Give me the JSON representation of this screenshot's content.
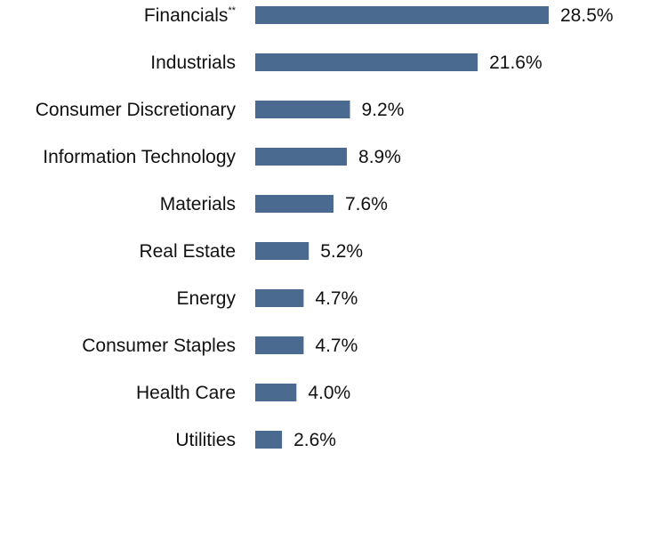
{
  "chart_data": {
    "type": "bar",
    "orientation": "horizontal",
    "categories": [
      "Financials",
      "Industrials",
      "Consumer Discretionary",
      "Information Technology",
      "Materials",
      "Real Estate",
      "Energy",
      "Consumer Staples",
      "Health Care",
      "Utilities"
    ],
    "category_superscripts": [
      "**",
      "",
      "",
      "",
      "",
      "",
      "",
      "",
      "",
      ""
    ],
    "values": [
      28.5,
      21.6,
      9.2,
      8.9,
      7.6,
      5.2,
      4.7,
      4.7,
      4.0,
      2.6
    ],
    "value_labels": [
      "28.5%",
      "21.6%",
      "9.2%",
      "8.9%",
      "7.6%",
      "5.2%",
      "4.7%",
      "4.7%",
      "4.0%",
      "2.6%"
    ],
    "unit": "%",
    "title": "",
    "xlabel": "",
    "ylabel": "",
    "xlim": [
      0,
      28.5
    ],
    "grid": false,
    "legend": "none",
    "bar_color": "#4a6a8f"
  }
}
